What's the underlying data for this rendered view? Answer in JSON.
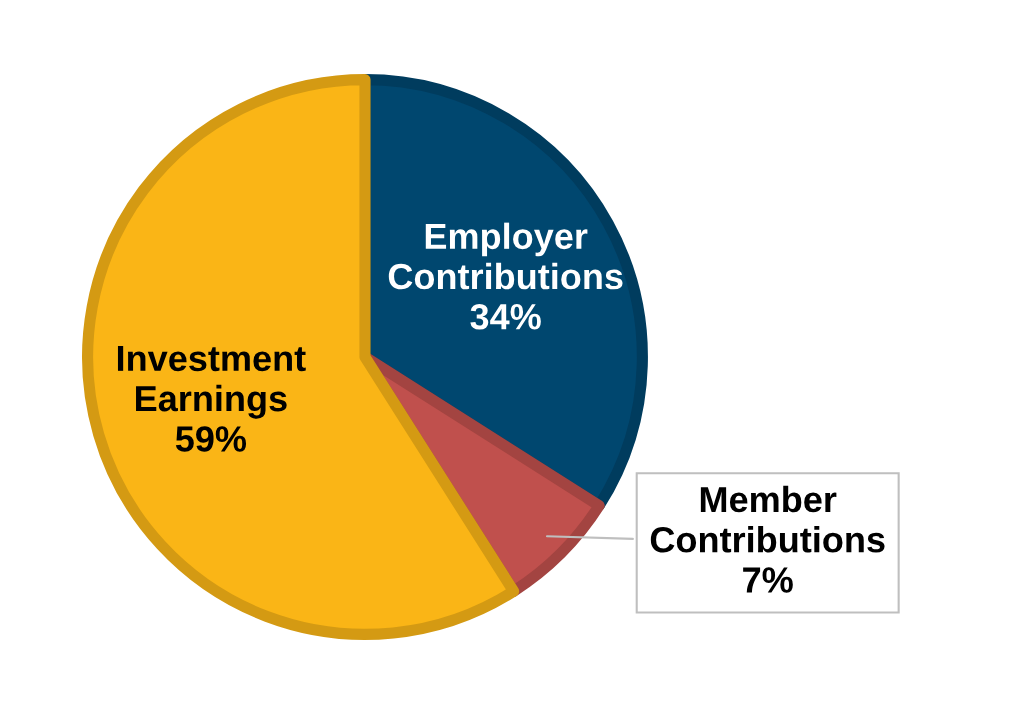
{
  "chart_data": {
    "type": "pie",
    "categories": [
      "Employer Contributions",
      "Member Contributions",
      "Investment Earnings"
    ],
    "values": [
      34,
      7,
      59
    ],
    "value_labels": [
      "34%",
      "7%",
      "59%"
    ],
    "colors": [
      "#00476f",
      "#c0504d",
      "#fab516"
    ]
  }
}
